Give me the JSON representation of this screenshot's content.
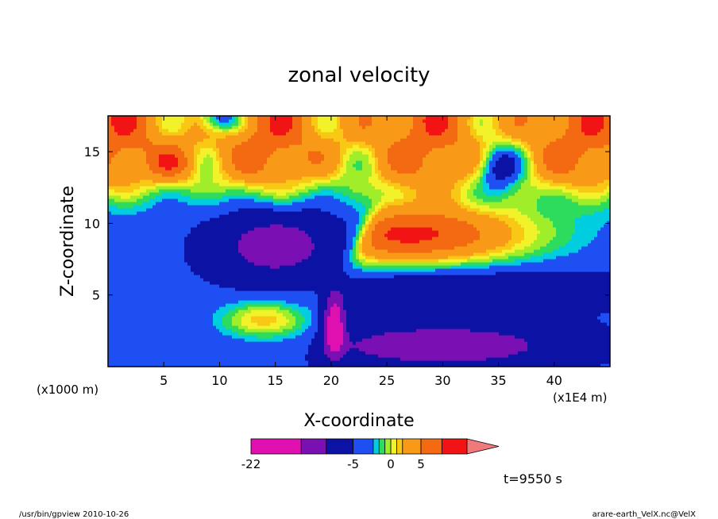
{
  "chart_data": {
    "type": "heatmap",
    "title": "zonal velocity",
    "xlabel": "X-coordinate",
    "ylabel": "Z-coordinate",
    "x_unit_label": "(x1E4 m)",
    "y_unit_label": "(x1000 m)",
    "xlim": [
      0,
      45
    ],
    "ylim": [
      0,
      17.5
    ],
    "x_ticks": [
      5,
      10,
      15,
      20,
      25,
      30,
      35,
      40
    ],
    "y_ticks": [
      5,
      10,
      15
    ],
    "colorbar": {
      "levels": [
        -22,
        -15,
        -10,
        -5,
        -3,
        -2,
        -1,
        0,
        1,
        2,
        5,
        8,
        11,
        14
      ],
      "colors": [
        "#e010b0",
        "#7a10b4",
        "#0c13a4",
        "#1e4ff2",
        "#00cde0",
        "#2ddc5c",
        "#a0ee2a",
        "#f2f22a",
        "#f8c815",
        "#f89a18",
        "#f46a12",
        "#f21414",
        "#f07a7a"
      ],
      "tick_labels": [
        {
          "label": "-22",
          "value": -22
        },
        {
          "label": "-5",
          "value": -5
        },
        {
          "label": "0",
          "value": 0
        },
        {
          "label": "5",
          "value": 5
        }
      ]
    },
    "features": [
      {
        "note_value": "minimum",
        "x": 20.5,
        "z": 3,
        "u": -20
      },
      {
        "note_value": "maximum",
        "x": 25,
        "z": 9.2,
        "u": 11
      }
    ]
  },
  "annotation": {
    "time": "t=9550 s",
    "footer_left": "/usr/bin/gpview  2010-10-26",
    "footer_right": "arare-earth_VelX.nc@VelX"
  }
}
